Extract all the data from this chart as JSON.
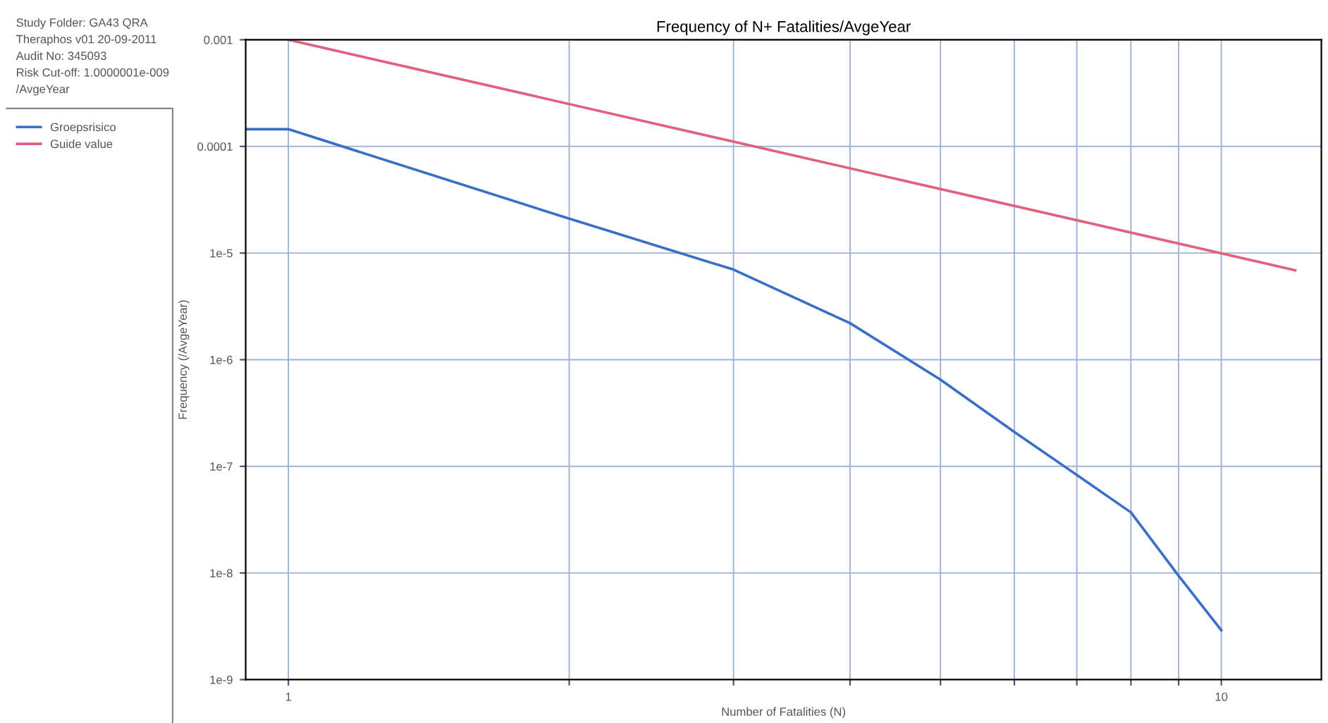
{
  "chart_data": {
    "type": "line",
    "title": "Frequency of N+ Fatalities/AvgeYear",
    "xlabel": "Number of Fatalities (N)",
    "ylabel": "Frequency (/AvgeYear)",
    "annotations": [
      "Study Folder: GA43 QRA",
      "Theraphos v01 20-09-2011",
      "Audit No: 345093",
      "Risk Cut-off: 1.0000001e-009",
      "/AvgeYear"
    ],
    "series": [
      {
        "name": "Groepsrisico",
        "color": "#3a6fc8",
        "x": [
          0.9,
          1,
          2,
          3,
          4,
          5,
          6,
          7,
          8,
          9,
          10
        ],
        "values": [
          0.000145,
          0.000145,
          2.1e-05,
          7e-06,
          2.2e-06,
          6.5e-07,
          2.1e-07,
          8.3e-08,
          3.7e-08,
          9.4e-09,
          2.9e-09
        ]
      },
      {
        "name": "Guide value",
        "color": "#e0607e",
        "x": [
          1,
          12
        ],
        "values": [
          0.001,
          6.9e-06
        ]
      }
    ],
    "log": "xy",
    "xlim": [
      0.9,
      12.8
    ],
    "ylim": [
      1e-09,
      0.001
    ],
    "xticks": [
      1,
      {
        "value": 2,
        "label": null
      },
      {
        "value": 3,
        "label": null
      },
      {
        "value": 4,
        "label": null
      },
      {
        "value": 5,
        "label": null
      },
      {
        "value": 6,
        "label": null
      },
      {
        "value": 7,
        "label": null
      },
      {
        "value": 8,
        "label": null
      },
      {
        "value": 9,
        "label": null
      },
      10
    ],
    "yticks": [
      {
        "value": 1e-09,
        "label": "1e-9"
      },
      {
        "value": 1e-08,
        "label": "1e-8"
      },
      {
        "value": 1e-07,
        "label": "1e-7"
      },
      {
        "value": 1e-06,
        "label": "1e-6"
      },
      {
        "value": 1e-05,
        "label": "1e-5"
      },
      {
        "value": 0.0001,
        "label": "0.0001"
      },
      {
        "value": 0.001,
        "label": "0.001"
      }
    ],
    "grid": true,
    "legend": "left",
    "marker": "none",
    "line_style": "solid"
  }
}
